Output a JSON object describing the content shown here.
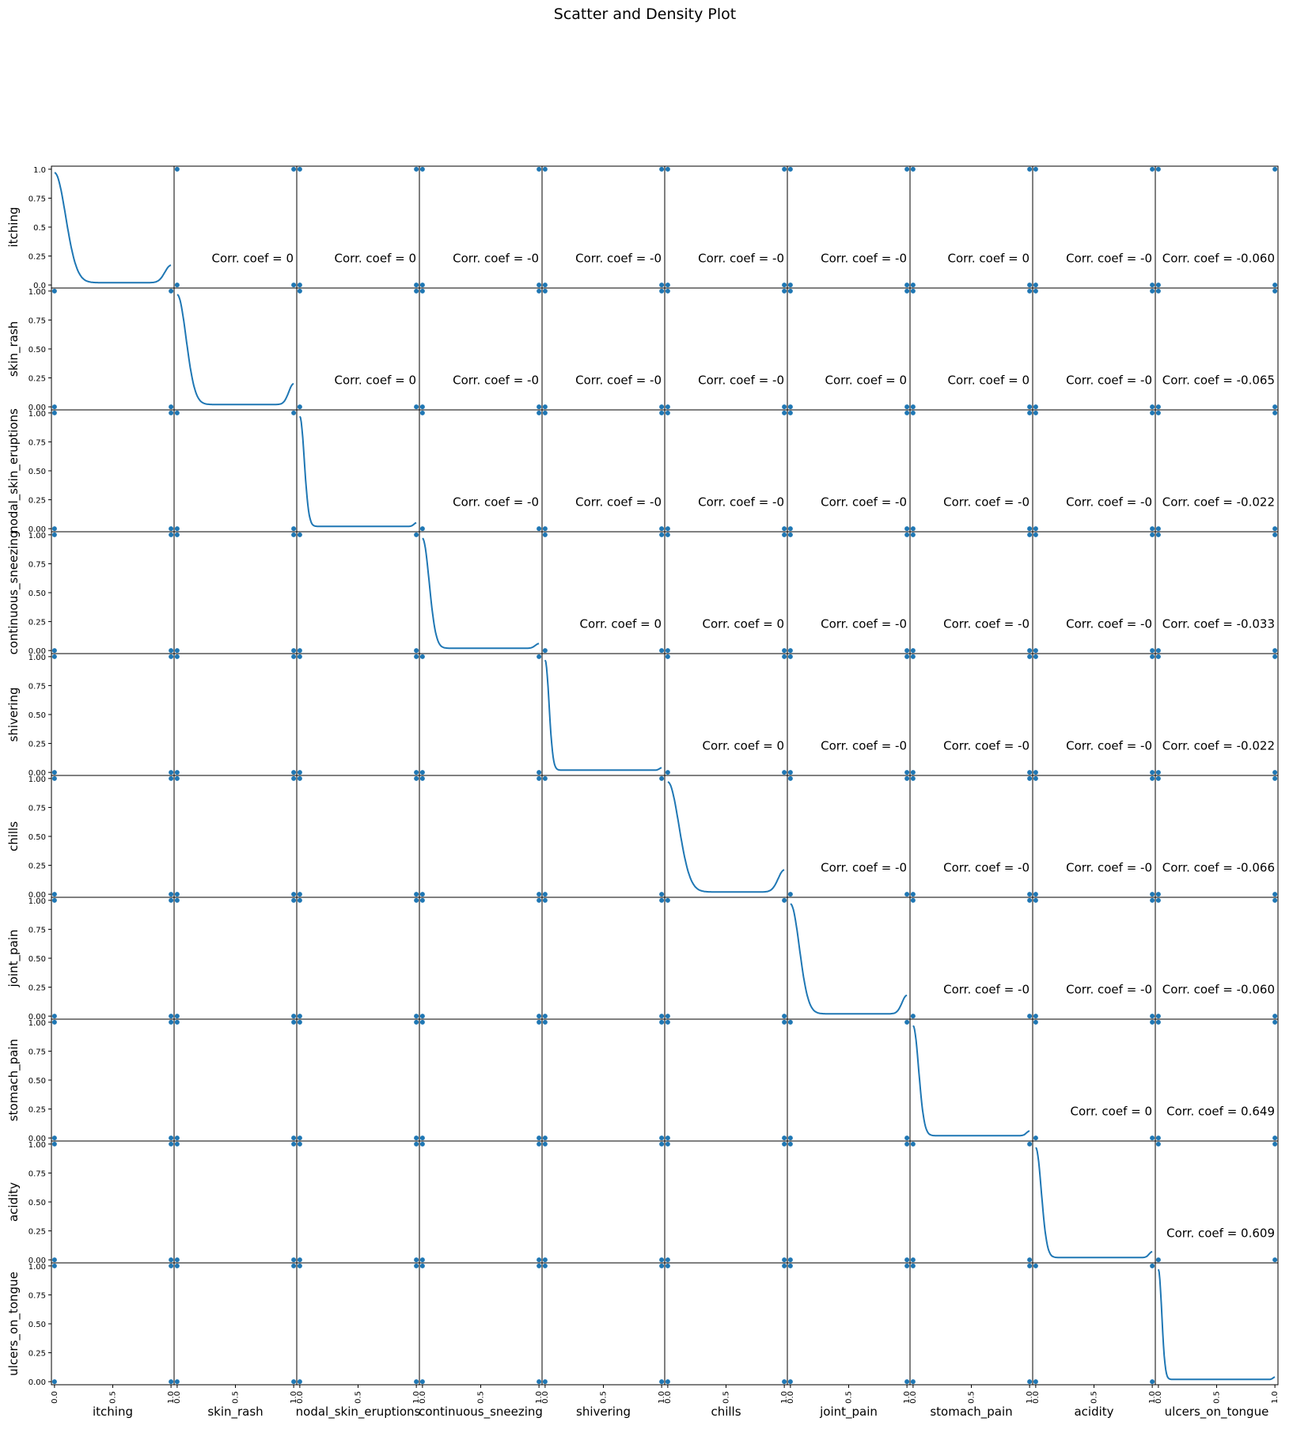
{
  "chart_data": {
    "type": "scatter",
    "title": "Scatter and Density Plot",
    "variables": [
      "itching",
      "skin_rash",
      "nodal_skin_eruptions",
      "continuous_sneezing",
      "shivering",
      "chills",
      "joint_pain",
      "stomach_pain",
      "acidity",
      "ulcers_on_tongue"
    ],
    "x_tick_labels": [
      "0.0",
      "0.5",
      "1.0"
    ],
    "y_tick_labels": [
      "0.00",
      "0.25",
      "0.50",
      "0.75",
      "1.00"
    ],
    "first_row_y_tick_labels": [
      "0.0",
      "0.25",
      "0.5",
      "0.75",
      "1.0"
    ],
    "xlim": [
      0,
      1
    ],
    "ylim": [
      0,
      1
    ],
    "diagonal": "kde",
    "corr_labels": [
      {
        "row": 0,
        "col": 1,
        "text": "Corr. coef = 0"
      },
      {
        "row": 0,
        "col": 2,
        "text": "Corr. coef = 0"
      },
      {
        "row": 0,
        "col": 3,
        "text": "Corr. coef = -0"
      },
      {
        "row": 0,
        "col": 4,
        "text": "Corr. coef = -0"
      },
      {
        "row": 0,
        "col": 5,
        "text": "Corr. coef = -0"
      },
      {
        "row": 0,
        "col": 6,
        "text": "Corr. coef = -0"
      },
      {
        "row": 0,
        "col": 7,
        "text": "Corr. coef = 0"
      },
      {
        "row": 0,
        "col": 8,
        "text": "Corr. coef = -0"
      },
      {
        "row": 0,
        "col": 9,
        "text": "Corr. coef = -0.060"
      },
      {
        "row": 1,
        "col": 2,
        "text": "Corr. coef = 0"
      },
      {
        "row": 1,
        "col": 3,
        "text": "Corr. coef = -0"
      },
      {
        "row": 1,
        "col": 4,
        "text": "Corr. coef = -0"
      },
      {
        "row": 1,
        "col": 5,
        "text": "Corr. coef = -0"
      },
      {
        "row": 1,
        "col": 6,
        "text": "Corr. coef = 0"
      },
      {
        "row": 1,
        "col": 7,
        "text": "Corr. coef = 0"
      },
      {
        "row": 1,
        "col": 8,
        "text": "Corr. coef = -0"
      },
      {
        "row": 1,
        "col": 9,
        "text": "Corr. coef = -0.065"
      },
      {
        "row": 2,
        "col": 3,
        "text": "Corr. coef = -0"
      },
      {
        "row": 2,
        "col": 4,
        "text": "Corr. coef = -0"
      },
      {
        "row": 2,
        "col": 5,
        "text": "Corr. coef = -0"
      },
      {
        "row": 2,
        "col": 6,
        "text": "Corr. coef = -0"
      },
      {
        "row": 2,
        "col": 7,
        "text": "Corr. coef = -0"
      },
      {
        "row": 2,
        "col": 8,
        "text": "Corr. coef = -0"
      },
      {
        "row": 2,
        "col": 9,
        "text": "Corr. coef = -0.022"
      },
      {
        "row": 3,
        "col": 4,
        "text": "Corr. coef = 0"
      },
      {
        "row": 3,
        "col": 5,
        "text": "Corr. coef = 0"
      },
      {
        "row": 3,
        "col": 6,
        "text": "Corr. coef = -0"
      },
      {
        "row": 3,
        "col": 7,
        "text": "Corr. coef = -0"
      },
      {
        "row": 3,
        "col": 8,
        "text": "Corr. coef = -0"
      },
      {
        "row": 3,
        "col": 9,
        "text": "Corr. coef = -0.033"
      },
      {
        "row": 4,
        "col": 5,
        "text": "Corr. coef = 0"
      },
      {
        "row": 4,
        "col": 6,
        "text": "Corr. coef = -0"
      },
      {
        "row": 4,
        "col": 7,
        "text": "Corr. coef = -0"
      },
      {
        "row": 4,
        "col": 8,
        "text": "Corr. coef = -0"
      },
      {
        "row": 4,
        "col": 9,
        "text": "Corr. coef = -0.022"
      },
      {
        "row": 5,
        "col": 6,
        "text": "Corr. coef = -0"
      },
      {
        "row": 5,
        "col": 7,
        "text": "Corr. coef = -0"
      },
      {
        "row": 5,
        "col": 8,
        "text": "Corr. coef = -0"
      },
      {
        "row": 5,
        "col": 9,
        "text": "Corr. coef = -0.066"
      },
      {
        "row": 6,
        "col": 7,
        "text": "Corr. coef = -0"
      },
      {
        "row": 6,
        "col": 8,
        "text": "Corr. coef = -0"
      },
      {
        "row": 6,
        "col": 9,
        "text": "Corr. coef = -0.060"
      },
      {
        "row": 7,
        "col": 8,
        "text": "Corr. coef = 0"
      },
      {
        "row": 7,
        "col": 9,
        "text": "Corr. coef = 0.649"
      },
      {
        "row": 8,
        "col": 9,
        "text": "Corr. coef = 0.609"
      }
    ],
    "kde": [
      {
        "variable": "itching",
        "peak": 0.97,
        "low": 0.02,
        "end": 0.17,
        "drop": 0.2
      },
      {
        "variable": "skin_rash",
        "peak": 0.97,
        "low": 0.02,
        "end": 0.2,
        "drop": 0.16
      },
      {
        "variable": "nodal_skin_eruptions",
        "peak": 0.97,
        "low": 0.02,
        "end": 0.05,
        "drop": 0.08
      },
      {
        "variable": "continuous_sneezing",
        "peak": 0.97,
        "low": 0.02,
        "end": 0.06,
        "drop": 0.12
      },
      {
        "variable": "shivering",
        "peak": 0.97,
        "low": 0.02,
        "end": 0.04,
        "drop": 0.07
      },
      {
        "variable": "chills",
        "peak": 0.97,
        "low": 0.02,
        "end": 0.21,
        "drop": 0.2
      },
      {
        "variable": "joint_pain",
        "peak": 0.97,
        "low": 0.02,
        "end": 0.18,
        "drop": 0.16
      },
      {
        "variable": "stomach_pain",
        "peak": 0.97,
        "low": 0.02,
        "end": 0.06,
        "drop": 0.1
      },
      {
        "variable": "acidity",
        "peak": 0.97,
        "low": 0.02,
        "end": 0.07,
        "drop": 0.1
      },
      {
        "variable": "ulcers_on_tongue",
        "peak": 0.97,
        "low": 0.02,
        "end": 0.04,
        "drop": 0.06
      }
    ],
    "scatter_points": [
      [
        0,
        0
      ],
      [
        0,
        1
      ],
      [
        1,
        0
      ],
      [
        1,
        1
      ]
    ],
    "colors": {
      "series": "#1f77b4",
      "frame": "#000000"
    }
  }
}
